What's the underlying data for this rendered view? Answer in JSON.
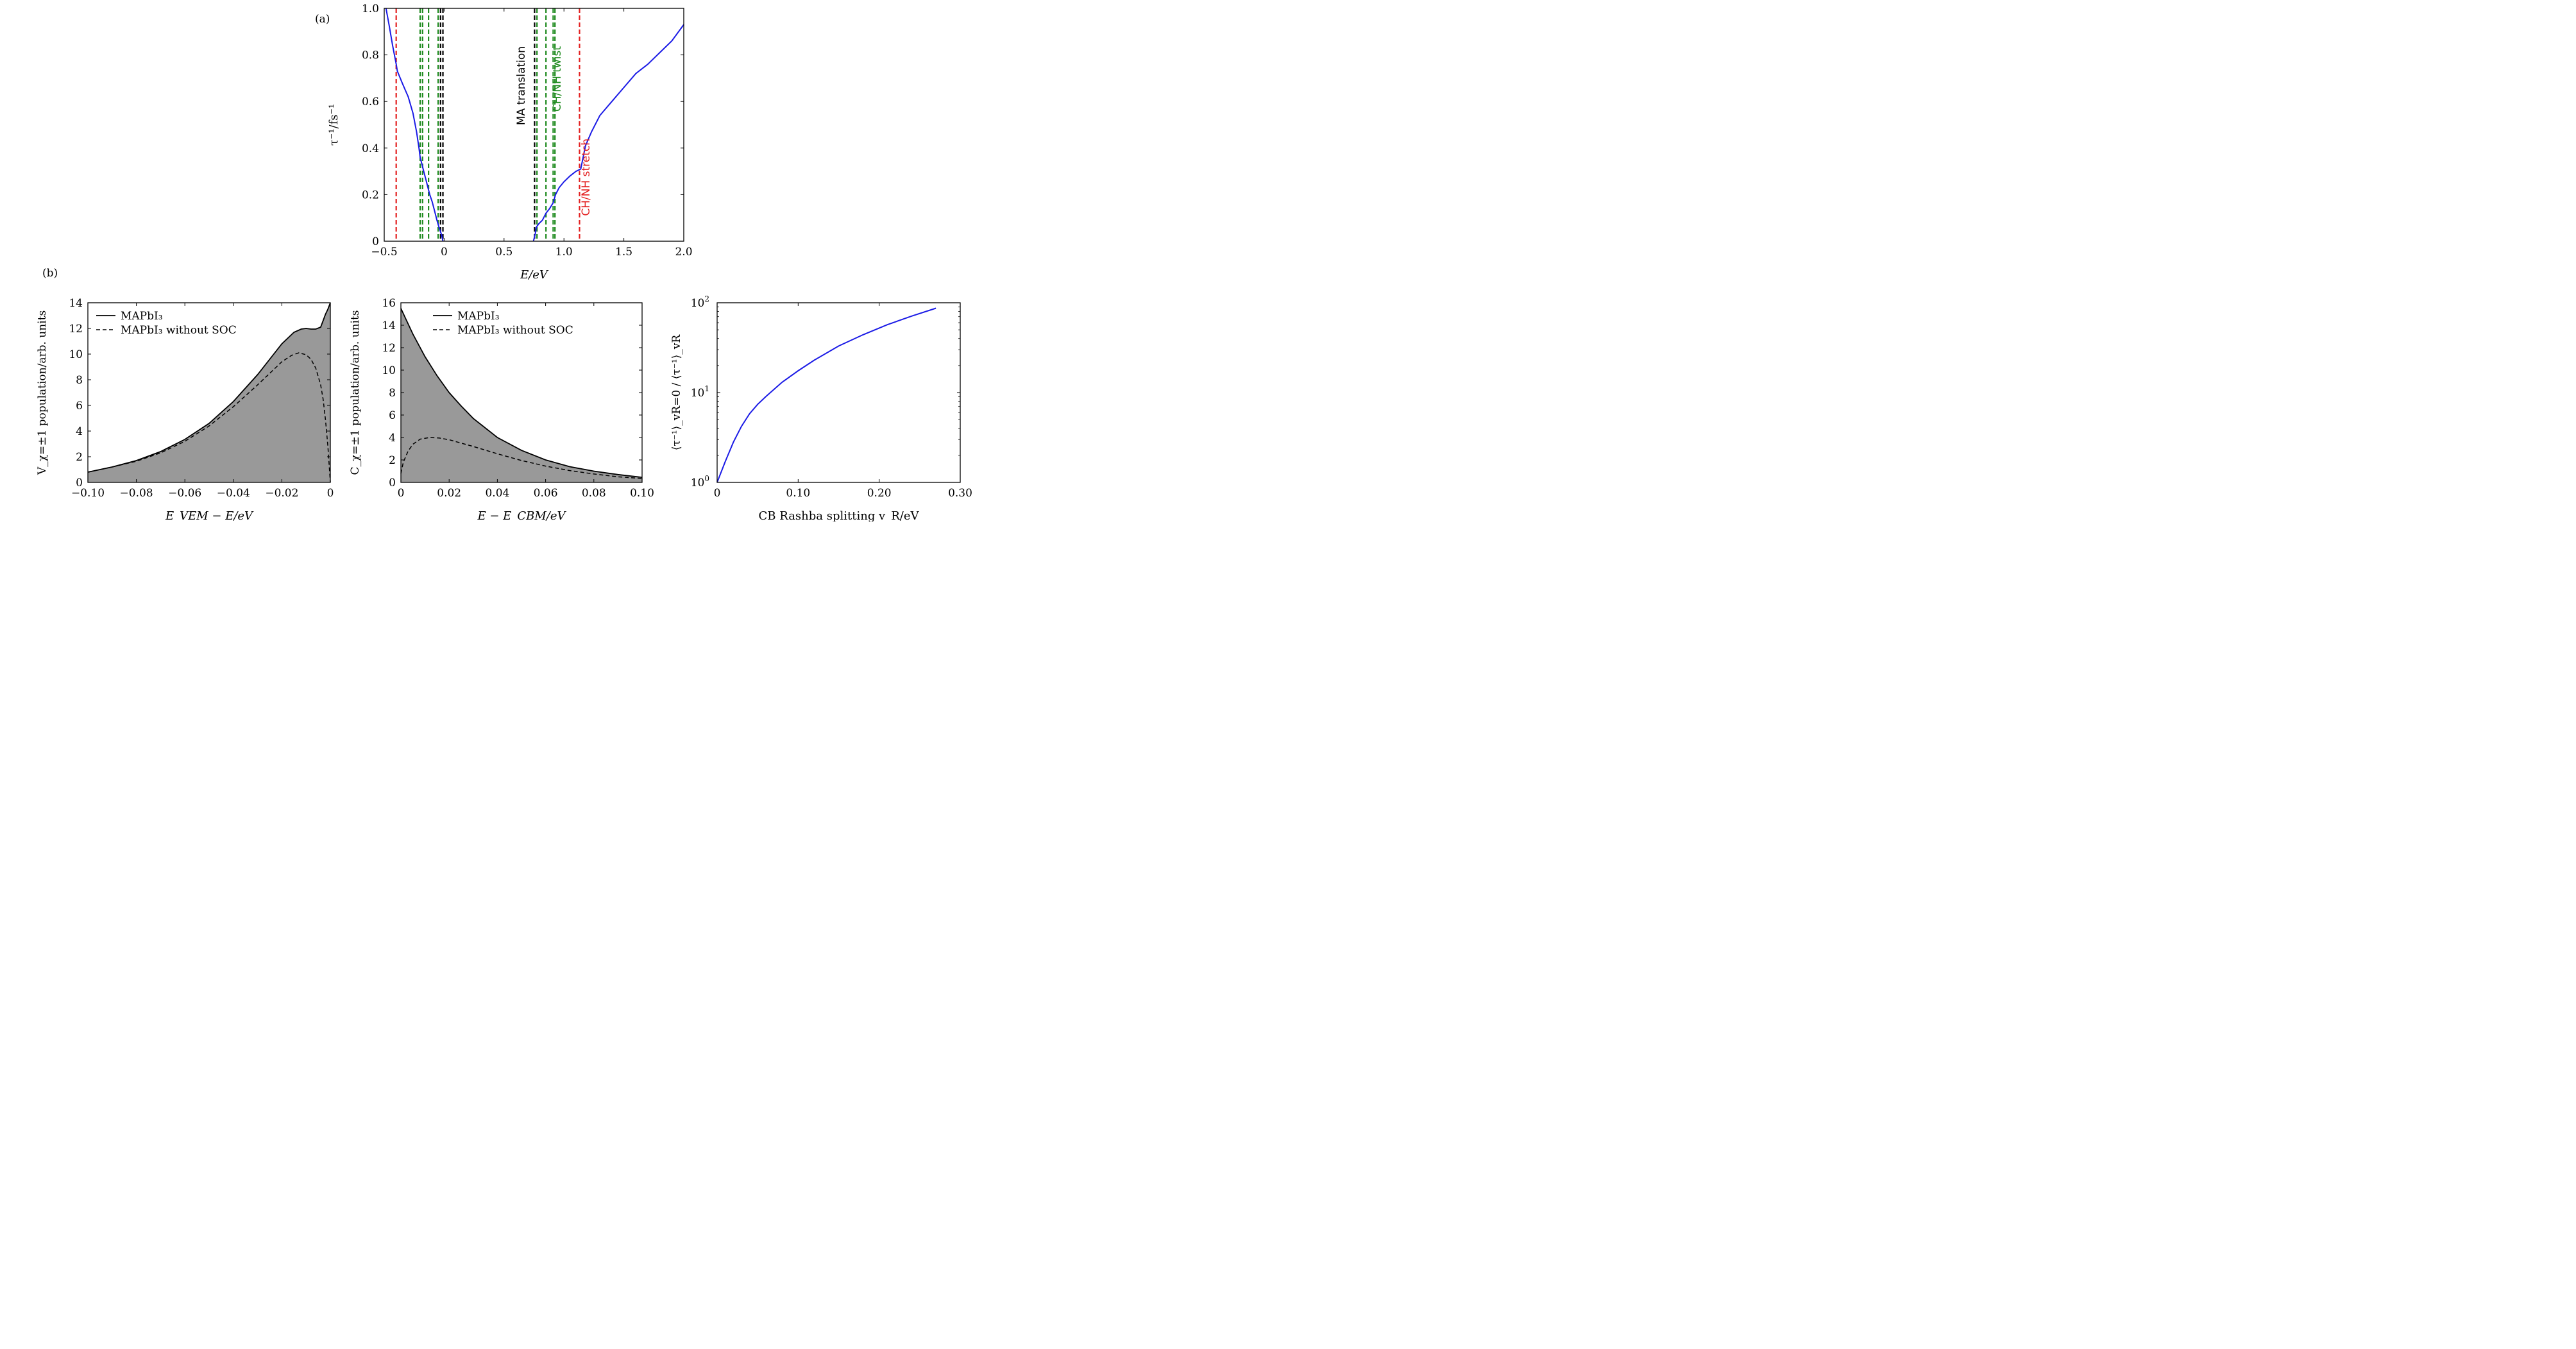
{
  "panel_labels": [
    "(a)",
    "(b)"
  ],
  "colors": {
    "curve": "#1a1ae6",
    "fill": "#999999",
    "red": "#e32020",
    "green": "#1e8a1e",
    "black": "#000000"
  },
  "chart_data": [
    {
      "id": "a",
      "type": "line",
      "title": "",
      "xlabel": "E/eV",
      "ylabel": "τ⁻¹/fs⁻¹",
      "xlim": [
        -0.5,
        2.0
      ],
      "ylim": [
        0,
        1.0
      ],
      "xticks": [
        -0.5,
        0,
        0.5,
        1.0,
        1.5,
        2.0
      ],
      "xtick_labels": [
        "−0.5",
        "0",
        "0.5",
        "1.0",
        "1.5",
        "2.0"
      ],
      "yticks": [
        0,
        0.2,
        0.4,
        0.6,
        0.8,
        1.0
      ],
      "ytick_labels": [
        "0",
        "0.2",
        "0.4",
        "0.6",
        "0.8",
        "1.0"
      ],
      "series": [
        {
          "color": "#1a1ae6",
          "x": [
            -0.485,
            -0.46,
            -0.43,
            -0.4,
            -0.39,
            -0.35,
            -0.3,
            -0.26,
            -0.23,
            -0.21,
            -0.2,
            -0.19,
            -0.17,
            -0.15,
            -0.13,
            -0.12,
            -0.1,
            -0.08,
            -0.06,
            -0.04,
            -0.02,
            -0.01
          ],
          "y": [
            1.0,
            0.93,
            0.84,
            0.76,
            0.73,
            0.68,
            0.62,
            0.55,
            0.47,
            0.4,
            0.36,
            0.34,
            0.3,
            0.26,
            0.22,
            0.2,
            0.17,
            0.13,
            0.09,
            0.055,
            0.025,
            0.0
          ]
        },
        {
          "color": "#1a1ae6",
          "x": [
            0.745,
            0.76,
            0.77,
            0.79,
            0.82,
            0.85,
            0.88,
            0.91,
            0.93,
            0.96,
            1.0,
            1.05,
            1.1,
            1.14,
            1.16,
            1.18,
            1.23,
            1.3,
            1.4,
            1.5,
            1.6,
            1.7,
            1.8,
            1.9,
            2.0
          ],
          "y": [
            0.0,
            0.03,
            0.06,
            0.075,
            0.09,
            0.12,
            0.14,
            0.165,
            0.2,
            0.23,
            0.255,
            0.28,
            0.3,
            0.31,
            0.36,
            0.41,
            0.47,
            0.54,
            0.6,
            0.66,
            0.72,
            0.76,
            0.81,
            0.86,
            0.93
          ]
        }
      ],
      "vlines": [
        {
          "x": -0.4,
          "color": "#e32020"
        },
        {
          "x": -0.2,
          "color": "#1e8a1e"
        },
        {
          "x": -0.18,
          "color": "#1e8a1e"
        },
        {
          "x": -0.13,
          "color": "#1e8a1e"
        },
        {
          "x": -0.05,
          "color": "#1e8a1e"
        },
        {
          "x": -0.03,
          "color": "#000000"
        },
        {
          "x": -0.01,
          "color": "#000000"
        },
        {
          "x": 0.755,
          "color": "#000000"
        },
        {
          "x": 0.775,
          "color": "#1e8a1e"
        },
        {
          "x": 0.85,
          "color": "#1e8a1e"
        },
        {
          "x": 0.91,
          "color": "#1e8a1e"
        },
        {
          "x": 0.925,
          "color": "#1e8a1e"
        },
        {
          "x": 1.13,
          "color": "#e32020"
        }
      ],
      "annotations": [
        {
          "text": "MA translation",
          "color": "#000000"
        },
        {
          "text": "CH/NH twist",
          "color": "#1e8a1e"
        },
        {
          "text": "CH/NH stretch",
          "color": "#e32020"
        }
      ]
    },
    {
      "id": "b1",
      "type": "area",
      "title": "",
      "xlabel": "E_VEM − E/eV",
      "ylabel": "V_χ=±1 population/arb. units",
      "xlim": [
        -0.1,
        0
      ],
      "ylim": [
        0,
        14
      ],
      "xticks": [
        -0.1,
        -0.08,
        -0.06,
        -0.04,
        -0.02,
        0
      ],
      "xtick_labels": [
        "−0.10",
        "−0.08",
        "−0.06",
        "−0.04",
        "−0.02",
        "0"
      ],
      "yticks": [
        0,
        2,
        4,
        6,
        8,
        10,
        12,
        14
      ],
      "ytick_labels": [
        "0",
        "2",
        "4",
        "6",
        "8",
        "10",
        "12",
        "14"
      ],
      "legend_position": "top-left",
      "series": [
        {
          "name": "MAPbI₃",
          "style": "solid-filled",
          "x": [
            -0.1,
            -0.09,
            -0.08,
            -0.07,
            -0.06,
            -0.05,
            -0.04,
            -0.03,
            -0.025,
            -0.02,
            -0.015,
            -0.012,
            -0.01,
            -0.008,
            -0.006,
            -0.004,
            -0.003,
            -0.002,
            -0.001,
            0
          ],
          "y": [
            0.8,
            1.2,
            1.7,
            2.4,
            3.35,
            4.6,
            6.3,
            8.4,
            9.6,
            10.8,
            11.7,
            11.95,
            12.0,
            11.95,
            11.95,
            12.1,
            12.6,
            13.1,
            13.5,
            14.0
          ]
        },
        {
          "name": "MAPbI₃ without SOC",
          "style": "dashed",
          "x": [
            -0.1,
            -0.09,
            -0.08,
            -0.07,
            -0.06,
            -0.05,
            -0.04,
            -0.03,
            -0.025,
            -0.02,
            -0.016,
            -0.013,
            -0.01,
            -0.008,
            -0.006,
            -0.004,
            -0.003,
            -0.002,
            -0.001,
            0
          ],
          "y": [
            0.8,
            1.2,
            1.65,
            2.3,
            3.2,
            4.4,
            5.9,
            7.6,
            8.5,
            9.4,
            9.9,
            10.1,
            9.95,
            9.6,
            8.9,
            7.6,
            6.5,
            4.9,
            2.8,
            0
          ]
        }
      ]
    },
    {
      "id": "b2",
      "type": "area",
      "title": "",
      "xlabel": "E − E_CBM/eV",
      "ylabel": "C_χ=±1 population/arb. units",
      "xlim": [
        0,
        0.1
      ],
      "ylim": [
        0,
        16
      ],
      "xticks": [
        0,
        0.02,
        0.04,
        0.06,
        0.08,
        0.1
      ],
      "xtick_labels": [
        "0",
        "0.02",
        "0.04",
        "0.06",
        "0.08",
        "0.10"
      ],
      "yticks": [
        0,
        2,
        4,
        6,
        8,
        10,
        12,
        14,
        16
      ],
      "ytick_labels": [
        "0",
        "2",
        "4",
        "6",
        "8",
        "10",
        "12",
        "14",
        "16"
      ],
      "legend_position": "top-right",
      "series": [
        {
          "name": "MAPbI₃",
          "style": "solid-filled",
          "x": [
            0,
            0.005,
            0.01,
            0.015,
            0.02,
            0.025,
            0.03,
            0.04,
            0.05,
            0.06,
            0.07,
            0.08,
            0.09,
            0.1
          ],
          "y": [
            15.5,
            13.2,
            11.2,
            9.5,
            8.0,
            6.8,
            5.7,
            4.0,
            2.85,
            2.0,
            1.4,
            1.0,
            0.7,
            0.45
          ]
        },
        {
          "name": "MAPbI₃ without SOC",
          "style": "dashed",
          "x": [
            0,
            0.001,
            0.003,
            0.005,
            0.008,
            0.012,
            0.016,
            0.02,
            0.025,
            0.03,
            0.04,
            0.05,
            0.06,
            0.07,
            0.08,
            0.09,
            0.1
          ],
          "y": [
            0.8,
            1.8,
            2.8,
            3.4,
            3.85,
            4.0,
            3.95,
            3.8,
            3.5,
            3.2,
            2.55,
            1.95,
            1.45,
            1.05,
            0.75,
            0.5,
            0.35
          ]
        }
      ]
    },
    {
      "id": "b3",
      "type": "line",
      "title": "",
      "xlabel": "CB Rashba splitting v_R/eV",
      "ylabel": "⟨τ⁻¹⟩_vR=0 / ⟨τ⁻¹⟩_vR",
      "xlim": [
        0,
        0.3
      ],
      "ylim": [
        1,
        100
      ],
      "yscale": "log",
      "xticks": [
        0,
        0.1,
        0.2,
        0.3
      ],
      "xtick_labels": [
        "0",
        "0.10",
        "0.20",
        "0.30"
      ],
      "yticks": [
        1,
        10,
        100
      ],
      "series": [
        {
          "color": "#1a1ae6",
          "x": [
            0,
            0.01,
            0.02,
            0.03,
            0.04,
            0.05,
            0.06,
            0.08,
            0.1,
            0.12,
            0.15,
            0.18,
            0.21,
            0.24,
            0.27
          ],
          "y": [
            1.0,
            1.7,
            2.8,
            4.2,
            5.8,
            7.4,
            9.0,
            13.0,
            17.5,
            23.0,
            33.0,
            44.0,
            57.0,
            71.0,
            87.0
          ]
        }
      ]
    }
  ]
}
